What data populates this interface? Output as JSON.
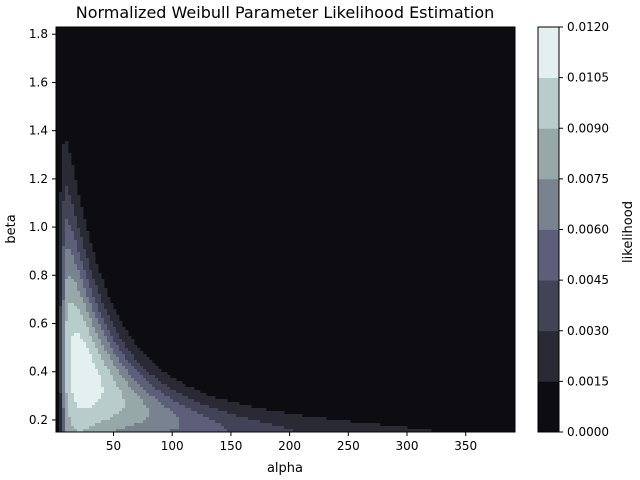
{
  "chart_data": {
    "type": "heatmap",
    "subtype": "filled-contour",
    "title": "Normalized Weibull Parameter Likelihood Estimation",
    "xlabel": "alpha",
    "ylabel": "beta",
    "colorbar_label": "likelihood",
    "colormap": "bone",
    "xlim": [
      1,
      392
    ],
    "ylim": [
      0.15,
      1.83
    ],
    "xticks": [
      50,
      100,
      150,
      200,
      250,
      300,
      350
    ],
    "yticks": [
      0.2,
      0.4,
      0.6,
      0.8,
      1.0,
      1.2,
      1.4,
      1.6,
      1.8
    ],
    "levels": [
      0.0,
      0.0015,
      0.003,
      0.0045,
      0.006,
      0.0075,
      0.009,
      0.0105,
      0.012
    ],
    "level_labels": [
      "0.0000",
      "0.0015",
      "0.0030",
      "0.0045",
      "0.0060",
      "0.0075",
      "0.0090",
      "0.0105",
      "0.0120"
    ],
    "level_colors": [
      "#0d0d11",
      "#2a2a35",
      "#434357",
      "#5d5f7a",
      "#79838f",
      "#97a8a8",
      "#b9cccc",
      "#e4efef"
    ],
    "peak": {
      "alpha": 23,
      "beta": 0.52,
      "likelihood": 0.0115
    }
  }
}
